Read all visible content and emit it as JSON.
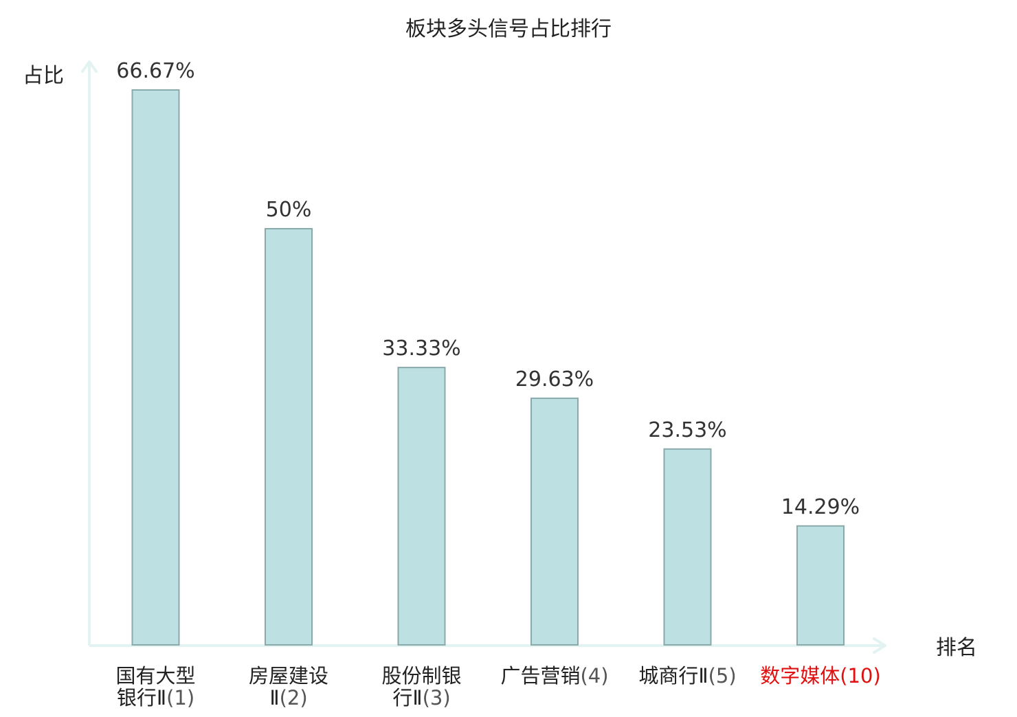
{
  "chart_data": {
    "type": "bar",
    "title": "板块多头信号占比排行",
    "xlabel": "排名",
    "ylabel": "占比",
    "ylim": [
      0,
      66.67
    ],
    "grid": false,
    "legend": "none",
    "categories": [
      {
        "name_lines": [
          "国有大型",
          "银行Ⅱ"
        ],
        "rank": "(1)",
        "highlight": false
      },
      {
        "name_lines": [
          "房屋建设",
          "Ⅱ"
        ],
        "rank": "(2)",
        "highlight": false
      },
      {
        "name_lines": [
          "股份制银",
          "行Ⅱ"
        ],
        "rank": "(3)",
        "highlight": false
      },
      {
        "name_lines": [
          "广告营销"
        ],
        "rank": "(4)",
        "highlight": false
      },
      {
        "name_lines": [
          "城商行Ⅱ"
        ],
        "rank": "(5)",
        "highlight": false
      },
      {
        "name_lines": [
          "数字媒体"
        ],
        "rank": "(10)",
        "highlight": true
      }
    ],
    "values": [
      66.67,
      50,
      33.33,
      29.63,
      23.53,
      14.29
    ],
    "value_labels": [
      "66.67%",
      "50%",
      "33.33%",
      "29.63%",
      "23.53%",
      "14.29%"
    ]
  },
  "colors": {
    "bar_fill": "#bde0e3",
    "bar_stroke": "#8aa9ab",
    "axis": "#e2f3f1",
    "text": "#333333",
    "title": "#222222",
    "name_text": "#222222",
    "rank_text": "#555555",
    "highlight": "#e01010"
  }
}
